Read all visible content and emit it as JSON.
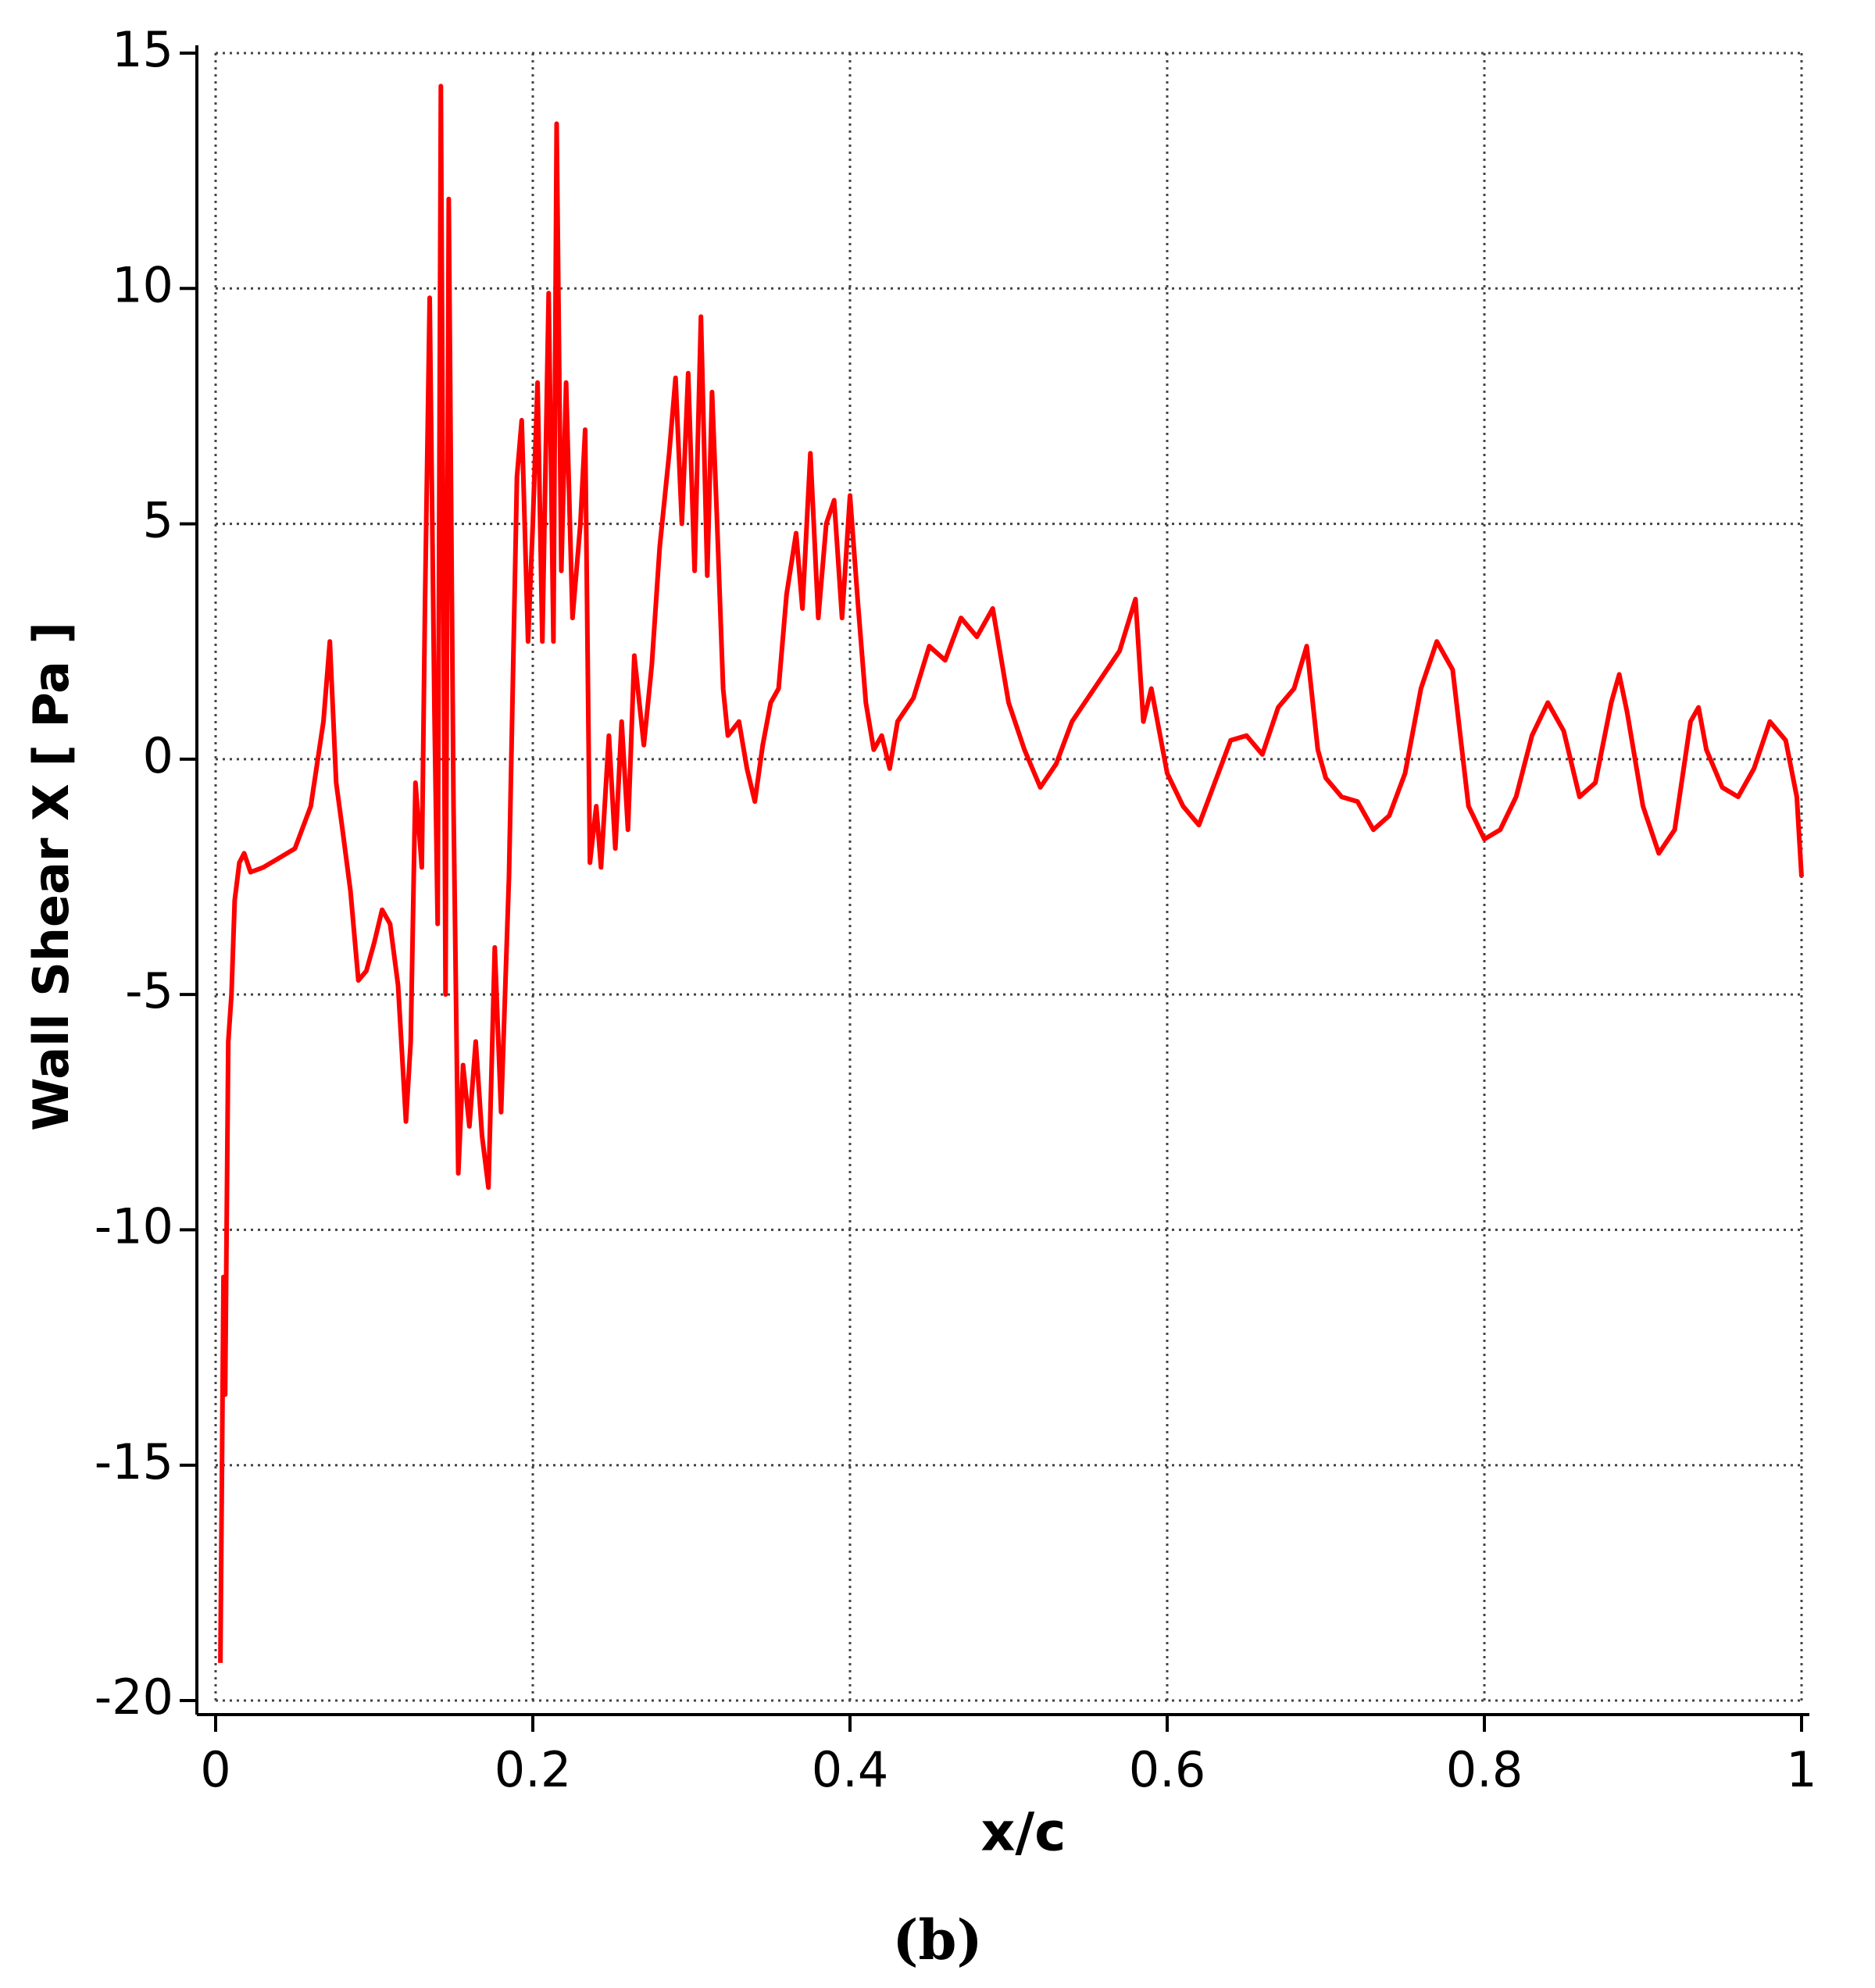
{
  "chart_data": {
    "type": "line",
    "caption": "(b)",
    "x_label": "x/c",
    "y_label": "Wall Shear X [ Pa ]",
    "xlim": [
      0,
      1
    ],
    "ylim": [
      -20,
      15
    ],
    "xticks": [
      0,
      0.2,
      0.4,
      0.6,
      0.8,
      1
    ],
    "yticks": [
      -20,
      -15,
      -10,
      -5,
      0,
      5,
      10,
      15
    ],
    "grid": true,
    "color": "#ff0000",
    "x": [
      0.003,
      0.005,
      0.006,
      0.008,
      0.01,
      0.012,
      0.015,
      0.018,
      0.022,
      0.03,
      0.04,
      0.05,
      0.06,
      0.068,
      0.072,
      0.076,
      0.08,
      0.085,
      0.09,
      0.095,
      0.1,
      0.105,
      0.11,
      0.115,
      0.12,
      0.123,
      0.126,
      0.13,
      0.132,
      0.135,
      0.138,
      0.14,
      0.142,
      0.145,
      0.147,
      0.15,
      0.153,
      0.156,
      0.16,
      0.164,
      0.168,
      0.172,
      0.176,
      0.18,
      0.185,
      0.19,
      0.193,
      0.197,
      0.2,
      0.203,
      0.206,
      0.21,
      0.213,
      0.215,
      0.218,
      0.221,
      0.225,
      0.23,
      0.233,
      0.236,
      0.24,
      0.243,
      0.248,
      0.252,
      0.256,
      0.26,
      0.264,
      0.27,
      0.275,
      0.28,
      0.286,
      0.29,
      0.294,
      0.298,
      0.302,
      0.306,
      0.31,
      0.313,
      0.316,
      0.32,
      0.323,
      0.33,
      0.335,
      0.34,
      0.345,
      0.35,
      0.355,
      0.36,
      0.366,
      0.37,
      0.375,
      0.38,
      0.385,
      0.39,
      0.395,
      0.4,
      0.405,
      0.41,
      0.415,
      0.42,
      0.425,
      0.43,
      0.44,
      0.45,
      0.46,
      0.47,
      0.48,
      0.49,
      0.5,
      0.51,
      0.52,
      0.53,
      0.54,
      0.55,
      0.56,
      0.57,
      0.58,
      0.585,
      0.59,
      0.6,
      0.61,
      0.62,
      0.63,
      0.64,
      0.65,
      0.66,
      0.67,
      0.68,
      0.688,
      0.695,
      0.7,
      0.71,
      0.72,
      0.73,
      0.74,
      0.75,
      0.76,
      0.77,
      0.78,
      0.79,
      0.8,
      0.81,
      0.82,
      0.83,
      0.84,
      0.85,
      0.86,
      0.87,
      0.88,
      0.885,
      0.89,
      0.9,
      0.91,
      0.92,
      0.93,
      0.935,
      0.94,
      0.95,
      0.96,
      0.97,
      0.98,
      0.99,
      0.997,
      1.0
    ],
    "values": [
      -19.2,
      -11,
      -13.5,
      -6,
      -5,
      -3,
      -2.2,
      -2.0,
      -2.4,
      -2.3,
      -2.1,
      -1.9,
      -1.0,
      0.8,
      2.5,
      -0.5,
      -1.5,
      -2.8,
      -4.7,
      -4.5,
      -3.9,
      -3.2,
      -3.5,
      -4.8,
      -7.7,
      -6,
      -0.5,
      -2.3,
      3.3,
      9.8,
      1,
      -3.5,
      14.3,
      -5,
      11.9,
      -1,
      -8.8,
      -6.5,
      -7.8,
      -6,
      -8,
      -9.1,
      -4,
      -7.5,
      -2.5,
      6,
      7.2,
      2.5,
      5,
      8,
      2.5,
      9.9,
      2.5,
      13.5,
      4,
      8,
      3,
      5,
      7,
      -2.2,
      -1,
      -2.3,
      0.5,
      -1.9,
      0.8,
      -1.5,
      2.2,
      0.3,
      2.0,
      4.5,
      6.5,
      8.1,
      5,
      8.2,
      4,
      9.4,
      3.9,
      7.8,
      5.2,
      1.5,
      0.5,
      0.8,
      -0.2,
      -0.9,
      0.3,
      1.2,
      1.5,
      3.5,
      4.8,
      3.2,
      6.5,
      3.0,
      5.0,
      5.5,
      3.0,
      5.6,
      3.3,
      1.2,
      0.2,
      0.5,
      -0.2,
      0.8,
      1.3,
      2.4,
      2.1,
      3.0,
      2.6,
      3.2,
      1.2,
      0.2,
      -0.6,
      -0.1,
      0.8,
      1.3,
      1.8,
      2.3,
      3.4,
      0.8,
      1.5,
      -0.3,
      -1.0,
      -1.4,
      -0.5,
      0.4,
      0.5,
      0.1,
      1.1,
      1.5,
      2.4,
      0.2,
      -0.4,
      -0.8,
      -0.9,
      -1.5,
      -1.2,
      -0.3,
      1.5,
      2.5,
      1.9,
      -1.0,
      -1.7,
      -1.5,
      -0.8,
      0.5,
      1.2,
      0.6,
      -0.8,
      -0.5,
      1.2,
      1.8,
      1.0,
      -1.0,
      -2.0,
      -1.5,
      0.8,
      1.1,
      0.2,
      -0.6,
      -0.8,
      -0.2,
      0.8,
      0.4,
      -0.8,
      -2.5
    ]
  }
}
